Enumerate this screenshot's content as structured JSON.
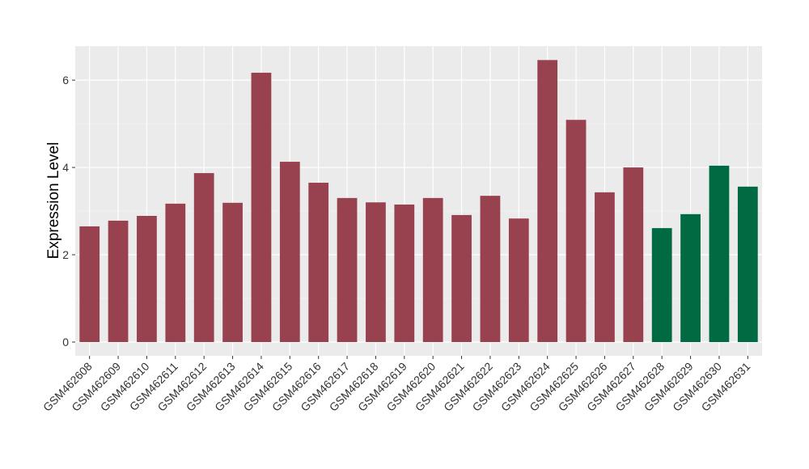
{
  "chart_data": {
    "type": "bar",
    "y_label": "Expression Level",
    "categories": [
      "GSM462608",
      "GSM462609",
      "GSM462610",
      "GSM462611",
      "GSM462612",
      "GSM462613",
      "GSM462614",
      "GSM462615",
      "GSM462616",
      "GSM462617",
      "GSM462618",
      "GSM462619",
      "GSM462620",
      "GSM462621",
      "GSM462622",
      "GSM462623",
      "GSM462624",
      "GSM462625",
      "GSM462626",
      "GSM462627",
      "GSM462628",
      "GSM462629",
      "GSM462630",
      "GSM462631"
    ],
    "values": [
      2.65,
      2.78,
      2.89,
      3.17,
      3.87,
      3.19,
      6.17,
      4.13,
      3.65,
      3.3,
      3.2,
      3.15,
      3.3,
      2.91,
      3.35,
      2.83,
      6.46,
      5.09,
      3.43,
      4.0,
      2.61,
      2.93,
      4.04,
      3.56
    ],
    "colors": [
      "#99424f",
      "#99424f",
      "#99424f",
      "#99424f",
      "#99424f",
      "#99424f",
      "#99424f",
      "#99424f",
      "#99424f",
      "#99424f",
      "#99424f",
      "#99424f",
      "#99424f",
      "#99424f",
      "#99424f",
      "#99424f",
      "#99424f",
      "#99424f",
      "#99424f",
      "#99424f",
      "#006a43",
      "#006a43",
      "#006a43",
      "#006a43"
    ],
    "ylim": [
      -0.315,
      6.78
    ],
    "yticks": [
      0,
      2,
      4,
      6
    ],
    "grid": true
  }
}
